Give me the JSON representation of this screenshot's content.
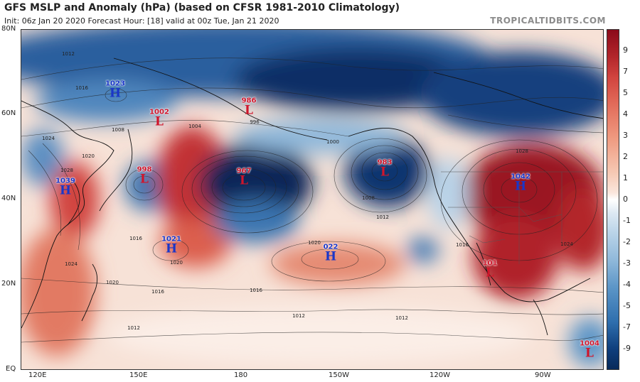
{
  "header": {
    "title": "GFS MSLP and Anomaly (hPa) (based on CFSR 1981-2010 Climatology)",
    "subtitle": "Init: 06z Jan 20 2020   Forecast Hour: [18]   valid at 00z Tue, Jan 21 2020",
    "brand": "TROPICALTIDBITS.COM"
  },
  "colorbar": {
    "ticks": [
      "9",
      "7",
      "5",
      "4",
      "3",
      "2",
      "1",
      "0",
      "-1",
      "-2",
      "-3",
      "-4",
      "-5",
      "-7",
      "-9"
    ],
    "colors": {
      "high": "#8b0a1a",
      "zero": "#ffffff",
      "low": "#082a5a"
    }
  },
  "axes": {
    "lat_labels": [
      "80N",
      "60N",
      "40N",
      "20N",
      "EQ"
    ],
    "lon_labels": [
      "120E",
      "150E",
      "180",
      "150W",
      "120W",
      "90W"
    ]
  },
  "systems": [
    {
      "type": "H",
      "value": "1023"
    },
    {
      "type": "L",
      "value": "1002"
    },
    {
      "type": "L",
      "value": "986"
    },
    {
      "type": "H",
      "value": "1039"
    },
    {
      "type": "L",
      "value": "998"
    },
    {
      "type": "L",
      "value": "967"
    },
    {
      "type": "L",
      "value": "983"
    },
    {
      "type": "H",
      "value": "1042"
    },
    {
      "type": "H",
      "value": "1021"
    },
    {
      "type": "H",
      "value": "022"
    },
    {
      "type": "L",
      "value": "101"
    },
    {
      "type": "L",
      "value": "1004"
    }
  ],
  "isobar_labels": [
    "1012",
    "1016",
    "1008",
    "1024",
    "1020",
    "1028",
    "996",
    "1004",
    "1000",
    "1016",
    "1020",
    "1012",
    "1016",
    "1012",
    "1024",
    "1020",
    "1016",
    "1012",
    "1020",
    "1016",
    "1012",
    "1008",
    "1028",
    "1024"
  ]
}
